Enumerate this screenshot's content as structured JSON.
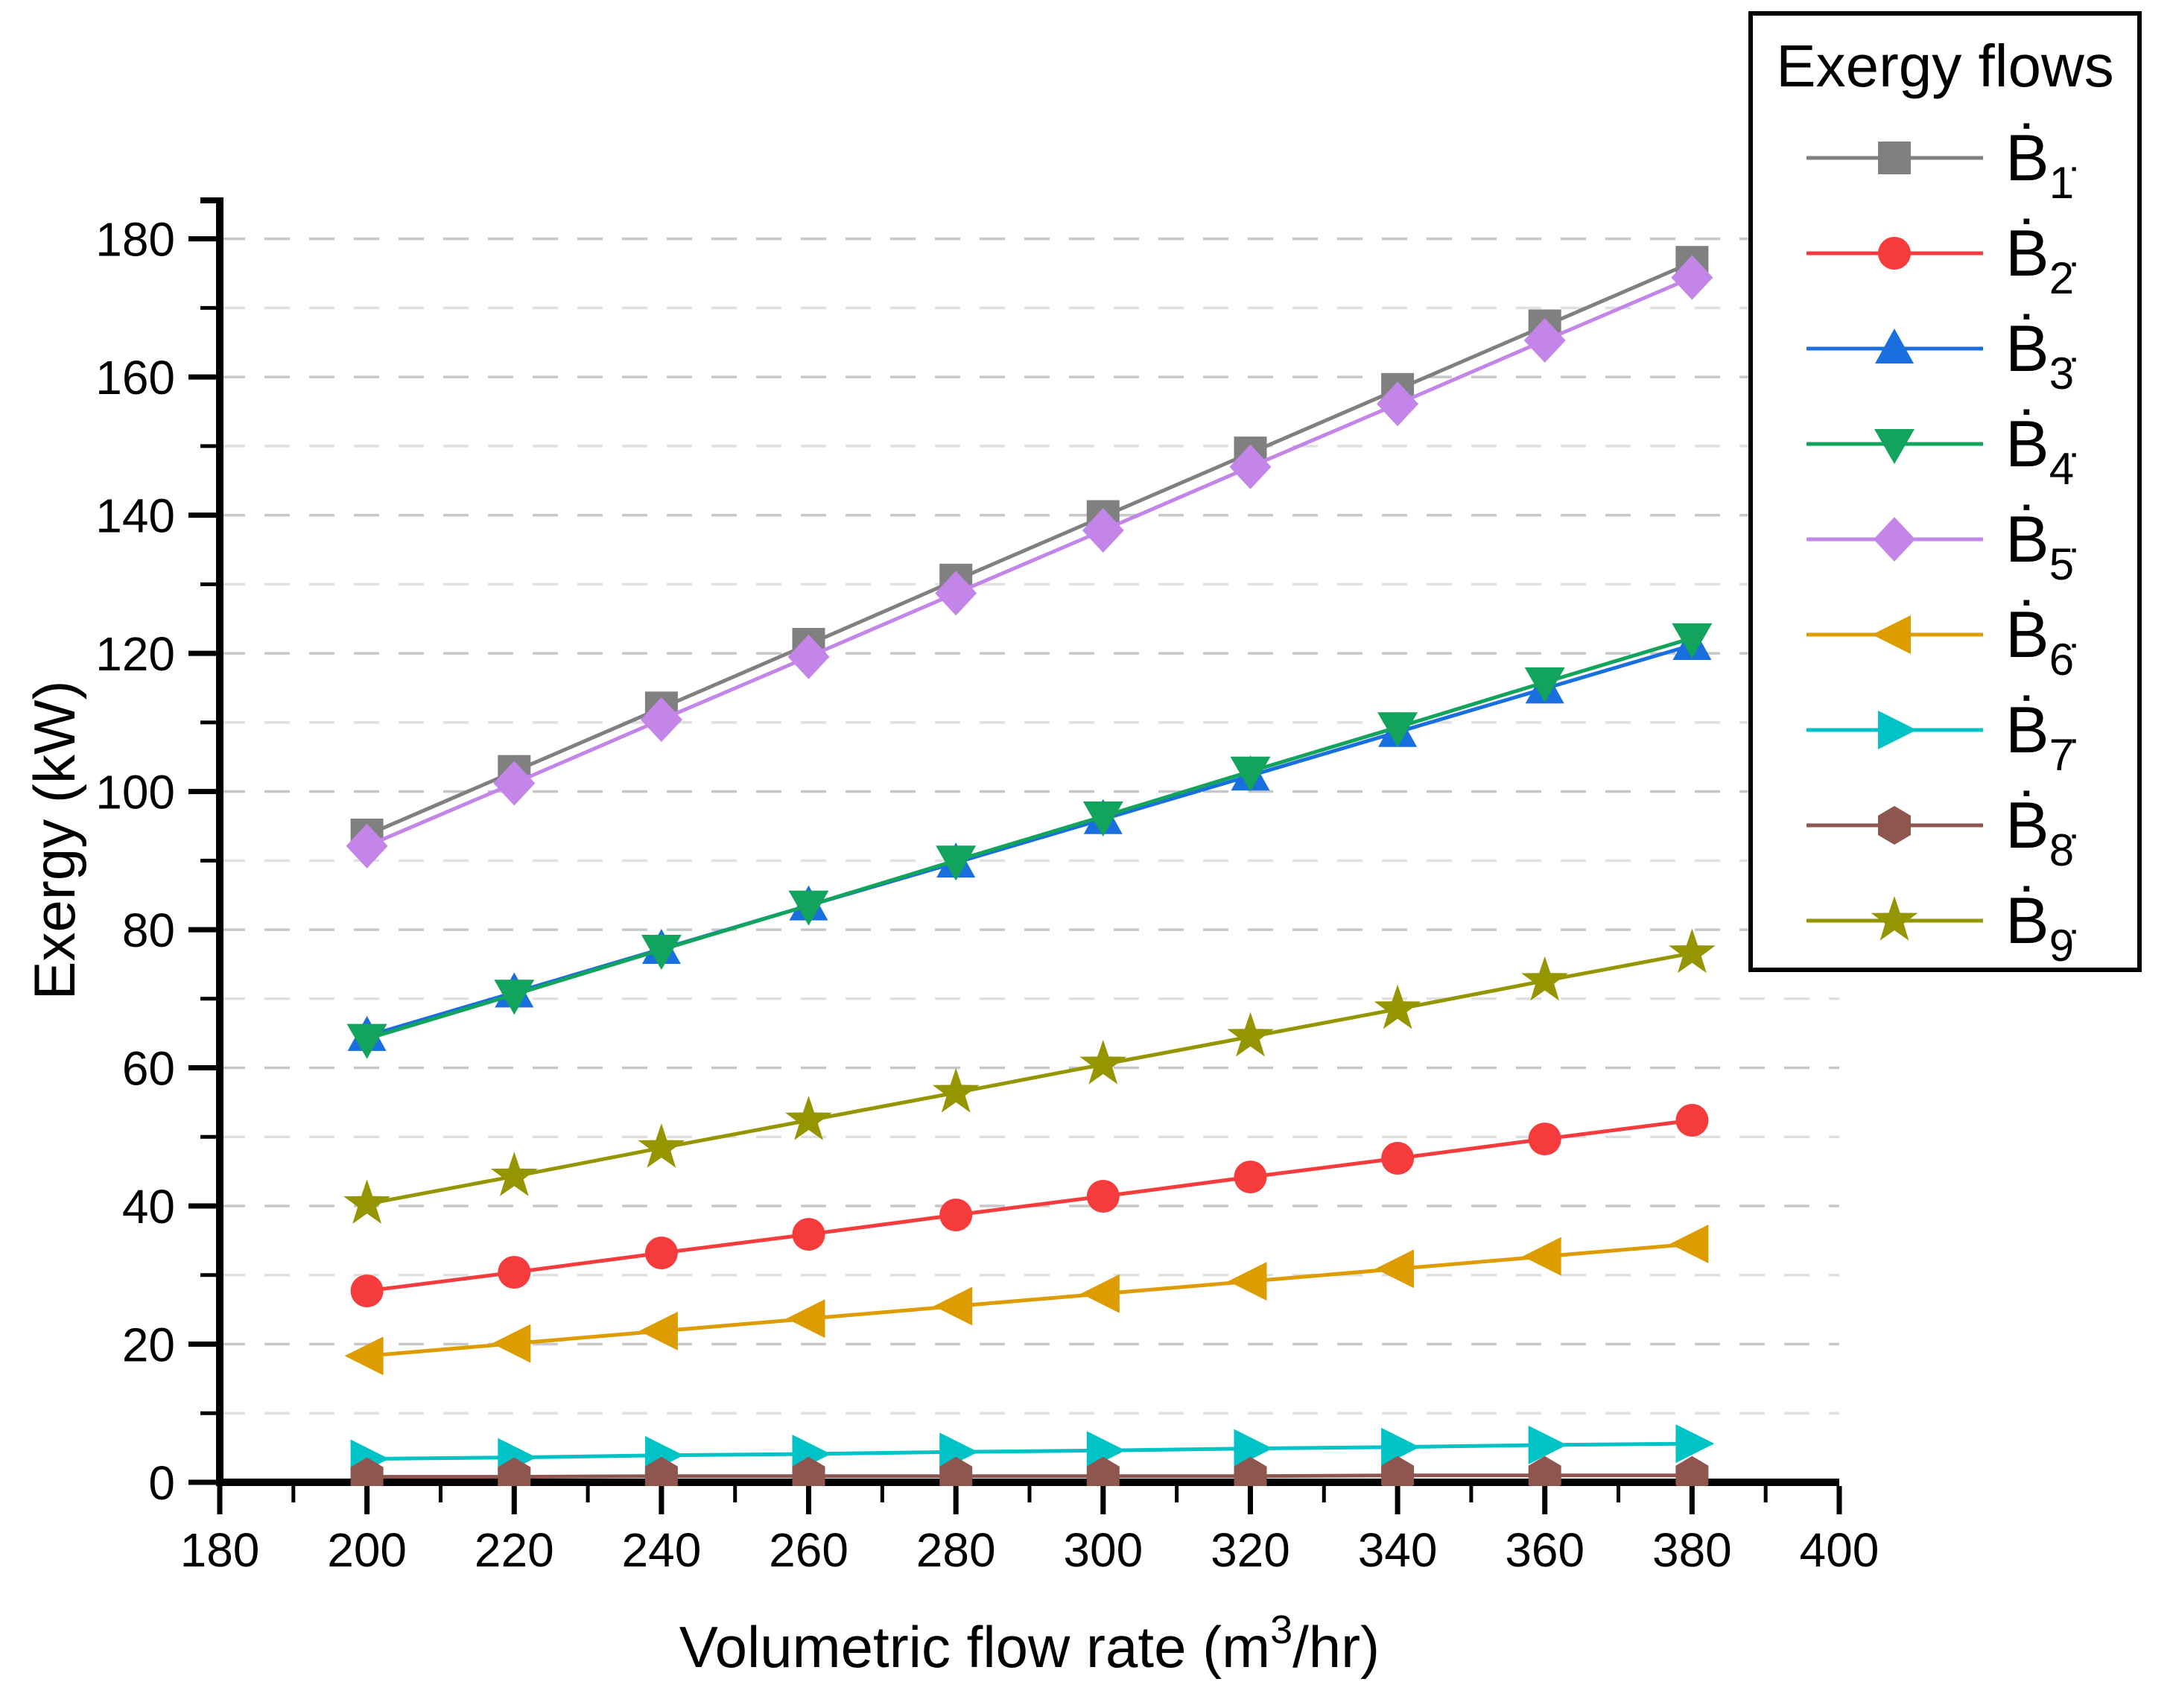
{
  "chart_data": {
    "type": "line",
    "title": "",
    "xlabel": "Volumetric flow rate (m³/hr)",
    "ylabel": "Exergy (kW)",
    "xlim": [
      180,
      400
    ],
    "ylim": [
      0,
      186
    ],
    "xticks": [
      180,
      200,
      220,
      240,
      260,
      280,
      300,
      320,
      340,
      360,
      380,
      400
    ],
    "yticks": [
      0,
      20,
      40,
      60,
      80,
      100,
      120,
      140,
      160,
      180
    ],
    "minor_tick_step": 10,
    "grid": {
      "horizontal": true,
      "vertical": false,
      "style": "dashed",
      "major_color": "#c7c7c7",
      "minor_color": "#e0e0e0"
    },
    "legend": {
      "title": "Exergy flows",
      "position": "top-right"
    },
    "x": [
      200,
      220,
      240,
      260,
      280,
      300,
      320,
      340,
      360,
      380
    ],
    "series": [
      {
        "name": "B1",
        "label_base": "Ḃ",
        "label_sub": "1̇",
        "marker": "square",
        "color": "#808080",
        "values": [
          93.7,
          102.9,
          112.1,
          121.3,
          130.6,
          139.8,
          149.0,
          158.2,
          167.4,
          176.6
        ]
      },
      {
        "name": "B2",
        "label_base": "Ḃ",
        "label_sub": "2̇",
        "marker": "circle",
        "color": "#f53b3b",
        "values": [
          27.7,
          30.4,
          33.2,
          35.9,
          38.7,
          41.4,
          44.2,
          46.9,
          49.7,
          52.4
        ]
      },
      {
        "name": "B3",
        "label_base": "Ḃ",
        "label_sub": "3̇",
        "marker": "triangle-up",
        "color": "#1a6fdf",
        "values": [
          64.6,
          70.9,
          77.2,
          83.5,
          89.7,
          96.0,
          102.3,
          108.6,
          114.9,
          121.2
        ]
      },
      {
        "name": "B4",
        "label_base": "Ḃ",
        "label_sub": "4̇",
        "marker": "triangle-down",
        "color": "#12a35c",
        "values": [
          64.2,
          70.6,
          77.1,
          83.5,
          90.0,
          96.4,
          102.9,
          109.3,
          115.8,
          122.2
        ]
      },
      {
        "name": "B5",
        "label_base": "Ḃ",
        "label_sub": "5̇",
        "marker": "diamond",
        "color": "#c386e8",
        "values": [
          92.1,
          101.2,
          110.4,
          119.5,
          128.7,
          137.8,
          147.0,
          156.1,
          165.3,
          174.4
        ]
      },
      {
        "name": "B6",
        "label_base": "Ḃ",
        "label_sub": "6̇",
        "marker": "triangle-left",
        "color": "#dd9c00",
        "values": [
          18.3,
          20.1,
          21.9,
          23.7,
          25.5,
          27.3,
          29.1,
          30.9,
          32.7,
          34.5
        ]
      },
      {
        "name": "B7",
        "label_base": "Ḃ",
        "label_sub": "7̇",
        "marker": "triangle-right",
        "color": "#00c3c8",
        "values": [
          3.4,
          3.6,
          3.9,
          4.1,
          4.4,
          4.6,
          4.9,
          5.1,
          5.4,
          5.6
        ]
      },
      {
        "name": "B8",
        "label_base": "Ḃ",
        "label_sub": "8̇",
        "marker": "hexagon",
        "color": "#8e564f",
        "values": [
          0.8,
          0.8,
          0.9,
          0.9,
          0.9,
          0.9,
          0.9,
          1.0,
          1.0,
          1.0
        ]
      },
      {
        "name": "B9",
        "label_base": "Ḃ",
        "label_sub": "9̇",
        "marker": "star",
        "color": "#959500",
        "values": [
          40.3,
          44.3,
          48.4,
          52.4,
          56.4,
          60.5,
          64.5,
          68.5,
          72.6,
          76.6
        ]
      }
    ]
  }
}
